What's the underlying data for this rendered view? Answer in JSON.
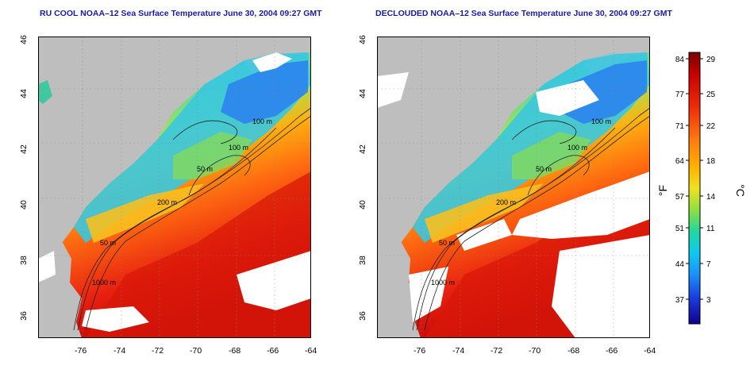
{
  "panels": [
    {
      "title": "RU COOL NOAA–12 Sea Surface Temperature June 30, 2004 09:27 GMT",
      "variant": "raw"
    },
    {
      "title": "DECLOUDED NOAA–12 Sea Surface Temperature June 30, 2004 09:27 GMT",
      "variant": "declouded"
    }
  ],
  "axes": {
    "lon_ticks": [
      "-76",
      "-74",
      "-72",
      "-70",
      "-68",
      "-66",
      "-64"
    ],
    "lat_ticks": [
      "46",
      "44",
      "42",
      "40",
      "38",
      "36"
    ]
  },
  "isobaths": {
    "label_100a": "100 m",
    "label_100b": "100 m",
    "label_50a": "50 m",
    "label_50b": "50 m",
    "label_200": "200 m",
    "label_1000": "1000 m"
  },
  "colorbar": {
    "fahrenheit_ticks": [
      "84",
      "77",
      "71",
      "64",
      "57",
      "51",
      "44",
      "37"
    ],
    "celsius_ticks": [
      "29",
      "25",
      "22",
      "18",
      "14",
      "11",
      "7",
      "3"
    ],
    "fahrenheit_unit": "°F",
    "celsius_unit": "°C"
  },
  "colors": {
    "land": "#bebebe",
    "cloud": "#ffffff",
    "title": "#1a1aa8"
  }
}
